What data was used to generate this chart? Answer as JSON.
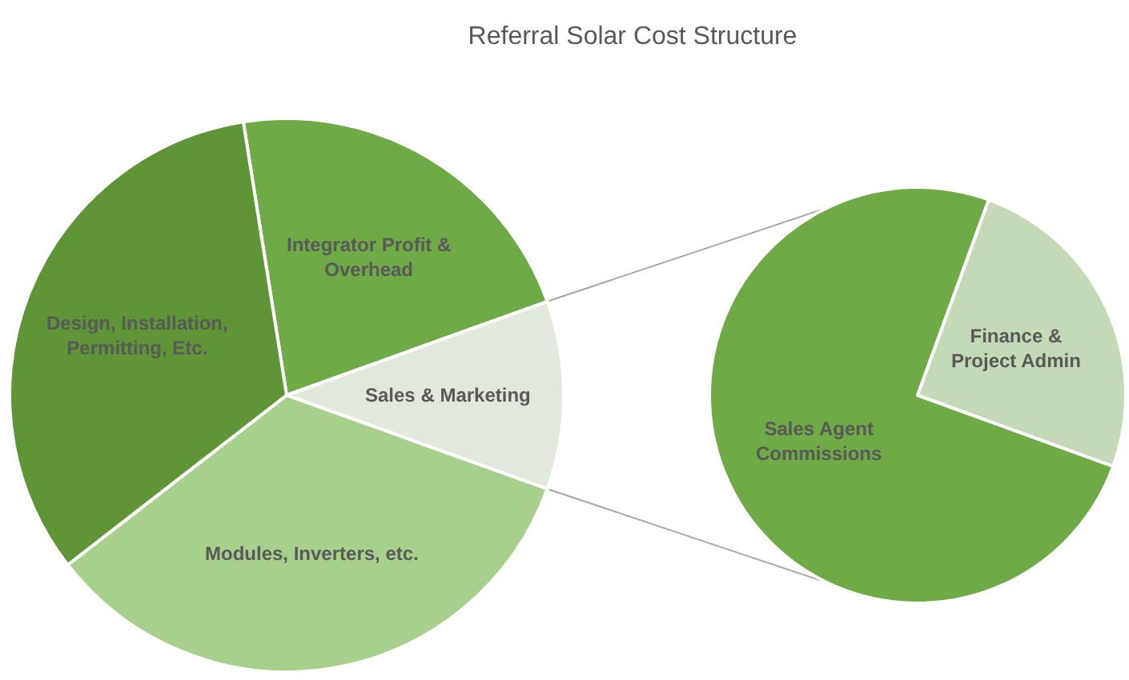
{
  "chart_data": [
    {
      "type": "pie",
      "title": "Referral Solar Cost Structure",
      "categories": [
        "Integrator Profit & Overhead",
        "Sales & Marketing",
        "Modules, Inverters, etc.",
        "Design, Installation, Permitting, Etc."
      ],
      "values": [
        22,
        11,
        34,
        33
      ],
      "colors": [
        "#6eaa45",
        "#e1e9dc",
        "#a8d08d",
        "#5f9537"
      ]
    },
    {
      "type": "pie",
      "categories": [
        "Sales Agent Commissions",
        "Finance & Project Admin"
      ],
      "values": [
        75,
        25
      ],
      "colors": [
        "#6eaa45",
        "#c4d9b5"
      ]
    }
  ]
}
